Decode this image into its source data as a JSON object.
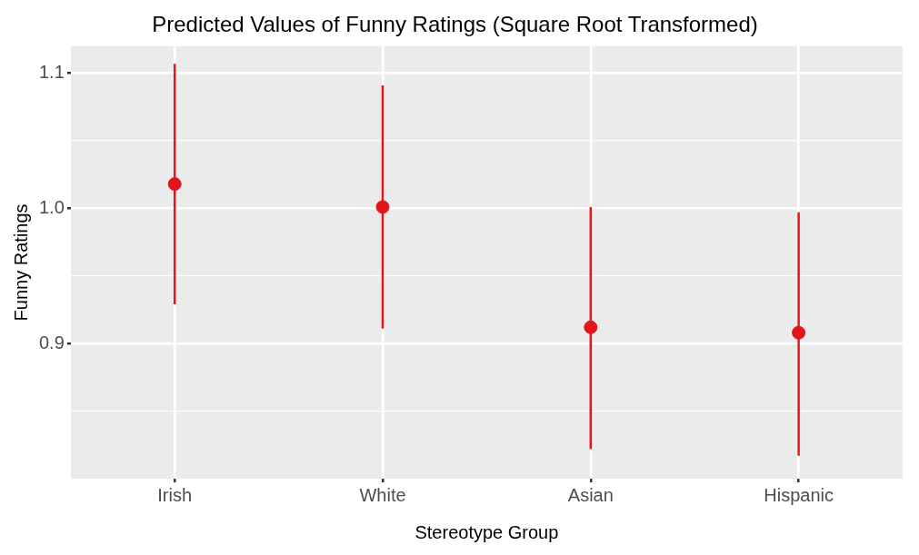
{
  "chart_data": {
    "type": "scatter",
    "title": "Predicted Values of Funny Ratings (Square Root Transformed)",
    "xlabel": "Stereotype Group",
    "ylabel": "Funny Ratings",
    "categories": [
      "Irish",
      "White",
      "Asian",
      "Hispanic"
    ],
    "series": [
      {
        "color": "#e0161c",
        "values": [
          1.018,
          1.001,
          0.912,
          0.908
        ],
        "errors": [
          [
            0.929,
            1.107
          ],
          [
            0.911,
            1.091
          ],
          [
            0.822,
            1.001
          ],
          [
            0.817,
            0.997
          ]
        ]
      }
    ],
    "ylim": [
      0.8,
      1.12
    ],
    "yticks": [
      {
        "value": 0.85,
        "label": null
      },
      0.9,
      {
        "value": 0.95,
        "label": null
      },
      {
        "value": 1.0,
        "label": "1.0"
      },
      {
        "value": 1.05,
        "label": null
      },
      1.1
    ],
    "grid": true,
    "legend": false,
    "marker": "circle"
  }
}
